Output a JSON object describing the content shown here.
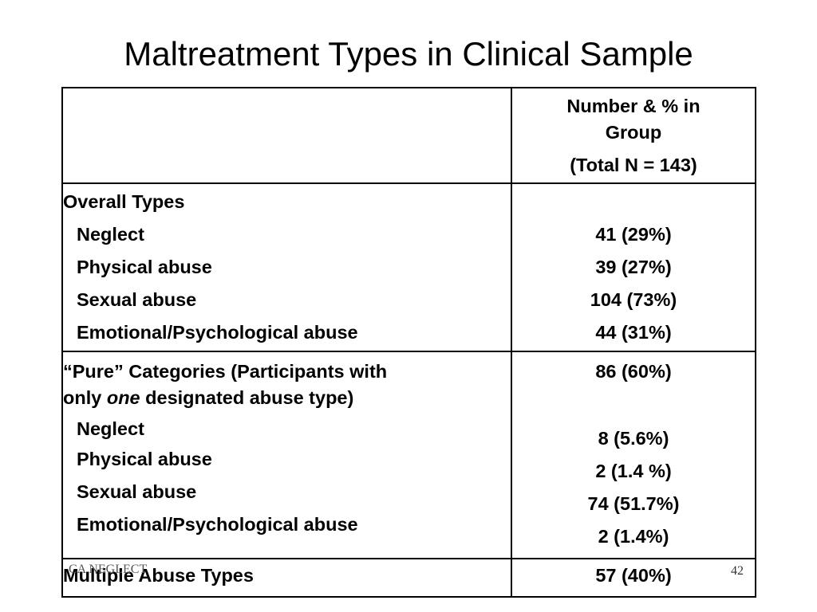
{
  "slide": {
    "title": "Maltreatment Types in Clinical Sample",
    "footer_left": "CA NEGLECT",
    "page_number": "42"
  },
  "table": {
    "header": {
      "line1": "Number & % in",
      "line2": "Group",
      "line3": "(Total N = 143)"
    },
    "overall": {
      "heading": "Overall Types",
      "rows": [
        {
          "label": "Neglect",
          "value": "41 (29%)"
        },
        {
          "label": "Physical abuse",
          "value": "39 (27%)"
        },
        {
          "label": "Sexual abuse",
          "value": "104 (73%)"
        },
        {
          "label": "Emotional/Psychological abuse",
          "value": "44 (31%)"
        }
      ]
    },
    "pure": {
      "heading_line1": "“Pure” Categories (Participants with",
      "heading_line2_pre": "only ",
      "heading_line2_em": "one",
      "heading_line2_post": " designated abuse type)",
      "total": "86 (60%)",
      "rows": [
        {
          "label": "Neglect",
          "value": "8 (5.6%)"
        },
        {
          "label": "Physical abuse",
          "value": "2 (1.4 %)"
        },
        {
          "label": "Sexual abuse",
          "value": "74 (51.7%)"
        },
        {
          "label": "Emotional/Psychological abuse",
          "value": "2 (1.4%)"
        }
      ]
    },
    "multiple": {
      "label": "Multiple Abuse Types",
      "value": "57 (40%)"
    }
  }
}
